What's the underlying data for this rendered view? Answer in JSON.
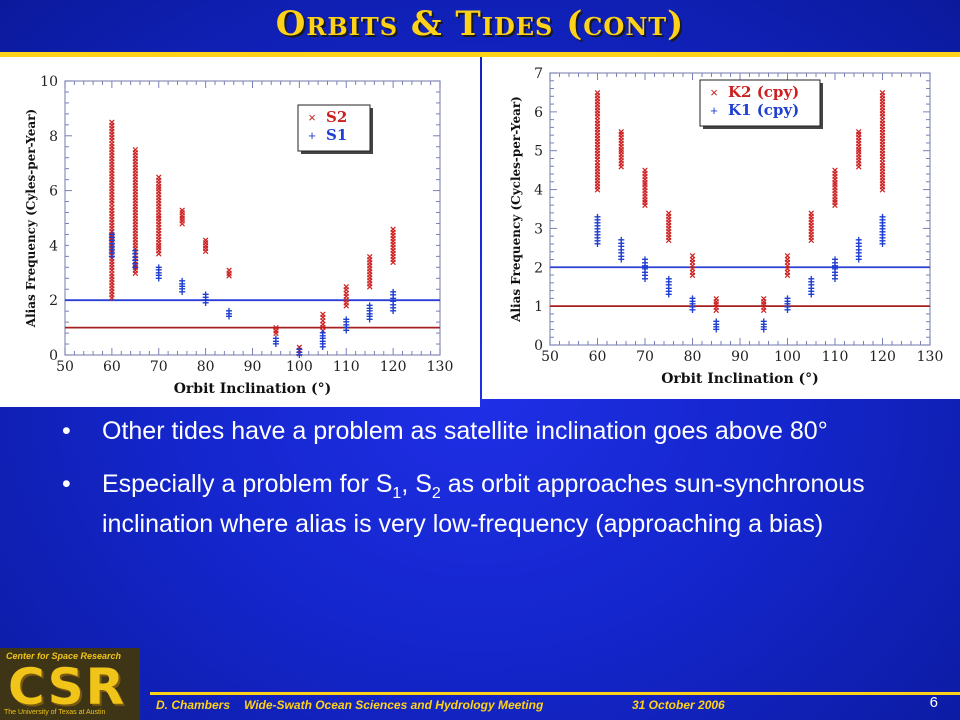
{
  "title": "Orbits & Tides (cont)",
  "bullets": [
    {
      "text": "Other tides have a problem as satellite inclination goes above 80°"
    },
    {
      "pre": "Especially a problem for S",
      "sub1": "1",
      "mid": ", S",
      "sub2": "2",
      "post": " as orbit approaches sun-synchronous inclination where alias is very low-frequency (approaching a bias)"
    }
  ],
  "bullet_symbol": "•",
  "footer": {
    "author": "D. Chambers",
    "meeting": "Wide-Swath Ocean Sciences and Hydrology Meeting",
    "date": "31 October 2006",
    "page": "6"
  },
  "logo": {
    "top_text": "Center for Space Research",
    "main_text": "CSR",
    "bottom_text": "The University of Texas at Austin"
  },
  "colors": {
    "red": "#cc2020",
    "blue": "#1f3fd0",
    "title": "#ffd21a",
    "bg": "#1426cc",
    "hline_blue": "#2a3fd6",
    "hline_red": "#a52020"
  },
  "chart_data": [
    {
      "type": "scatter",
      "xlabel": "Orbit Inclination (°)",
      "ylabel": "Alias Frequency (Cyles-per-Year)",
      "xlim": [
        50,
        130
      ],
      "ylim": [
        0,
        10
      ],
      "xticks": [
        50,
        60,
        70,
        80,
        90,
        100,
        110,
        120,
        130
      ],
      "yticks": [
        0,
        2,
        4,
        6,
        8,
        10
      ],
      "legend_position": "top-right",
      "hlines": [
        {
          "y": 2,
          "color": "blue"
        },
        {
          "y": 1,
          "color": "red"
        }
      ],
      "series": [
        {
          "name": "S2",
          "marker": "×",
          "color": "red",
          "x": [
            60,
            65,
            70,
            75,
            80,
            85,
            95,
            100,
            105,
            110,
            115,
            120
          ],
          "ymin": [
            2.1,
            3.0,
            3.7,
            4.8,
            3.8,
            2.9,
            0.8,
            0.05,
            0.9,
            1.8,
            2.5,
            3.4
          ],
          "ymax": [
            8.5,
            7.5,
            6.5,
            5.3,
            4.2,
            3.1,
            1.0,
            0.3,
            1.5,
            2.5,
            3.6,
            4.6
          ]
        },
        {
          "name": "S1",
          "marker": "+",
          "color": "blue",
          "x": [
            60,
            65,
            70,
            75,
            80,
            85,
            95,
            100,
            105,
            110,
            115,
            120
          ],
          "ymin": [
            3.6,
            3.2,
            2.8,
            2.3,
            1.9,
            1.4,
            0.4,
            0.0,
            0.3,
            0.9,
            1.3,
            1.6
          ],
          "ymax": [
            4.4,
            3.8,
            3.2,
            2.7,
            2.2,
            1.6,
            0.6,
            0.2,
            0.8,
            1.3,
            1.8,
            2.3
          ]
        }
      ]
    },
    {
      "type": "scatter",
      "xlabel": "Orbit Inclination (°)",
      "ylabel": "Alias Frequency (Cycles-per-Year)",
      "xlim": [
        50,
        130
      ],
      "ylim": [
        0,
        7
      ],
      "xticks": [
        50,
        60,
        70,
        80,
        90,
        100,
        110,
        120,
        130
      ],
      "yticks": [
        0,
        1,
        2,
        3,
        4,
        5,
        6,
        7
      ],
      "legend_position": "top-right",
      "hlines": [
        {
          "y": 2,
          "color": "blue"
        },
        {
          "y": 1,
          "color": "red"
        }
      ],
      "series": [
        {
          "name": "K2 (cpy)",
          "marker": "×",
          "color": "red",
          "x": [
            60,
            65,
            70,
            75,
            80,
            85,
            95,
            100,
            105,
            110,
            115,
            120
          ],
          "ymin": [
            4.0,
            4.6,
            3.6,
            2.7,
            1.8,
            0.9,
            0.9,
            1.8,
            2.7,
            3.6,
            4.6,
            4.0
          ],
          "ymax": [
            6.5,
            5.5,
            4.5,
            3.4,
            2.3,
            1.2,
            1.2,
            2.3,
            3.4,
            4.5,
            5.5,
            6.5
          ]
        },
        {
          "name": "K1 (cpy)",
          "marker": "+",
          "color": "blue",
          "x": [
            60,
            65,
            70,
            75,
            80,
            85,
            95,
            100,
            105,
            110,
            115,
            120
          ],
          "ymin": [
            2.6,
            2.2,
            1.7,
            1.3,
            0.9,
            0.4,
            0.4,
            0.9,
            1.3,
            1.7,
            2.2,
            2.6
          ],
          "ymax": [
            3.3,
            2.7,
            2.2,
            1.7,
            1.2,
            0.6,
            0.6,
            1.2,
            1.7,
            2.2,
            2.7,
            3.3
          ]
        }
      ]
    }
  ]
}
